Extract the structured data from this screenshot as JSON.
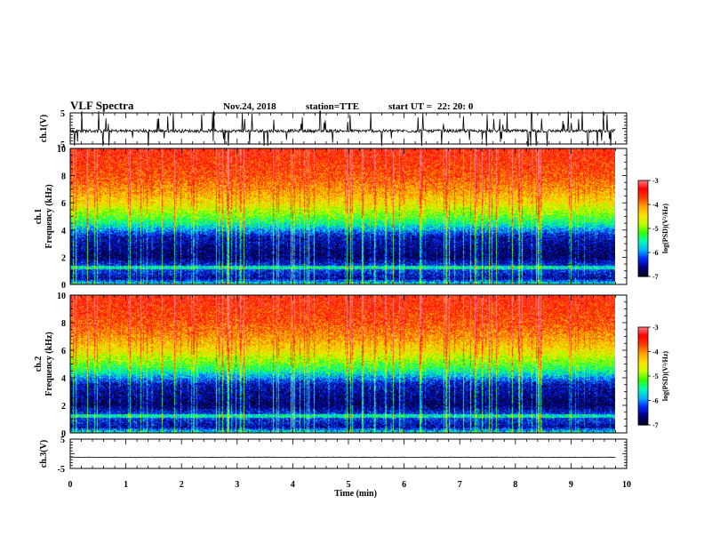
{
  "header": {
    "title": "VLF Spectra",
    "date": "Nov.24, 2018",
    "station": "station=TTE",
    "start_label": "start UT =",
    "start_time": "22: 20: 0"
  },
  "colors": {
    "frame": "#000000",
    "waveform": "#000000",
    "colormap": [
      "#000020",
      "#000080",
      "#0028ff",
      "#00b4ff",
      "#00ffb4",
      "#32ff00",
      "#c8ff00",
      "#ffe000",
      "#ffa000",
      "#ff3c00",
      "#ff0000",
      "#ff8080"
    ]
  },
  "chart_data": [
    {
      "type": "line",
      "ylabel": "ch.1(V)",
      "ylim": [
        -5,
        5
      ],
      "ytick_labels": [
        "-5",
        "5"
      ],
      "xlim": [
        0,
        10
      ],
      "x_coverage_min": 9.8,
      "baseline_v": -0.8,
      "noise_amplitude_v": 0.5,
      "impulsive_spikes": true
    },
    {
      "type": "heatmap",
      "ylabel": "ch.1\nFrequency (kHz)",
      "ylim_khz": [
        0,
        10
      ],
      "ytick_labels": [
        "0",
        "2",
        "4",
        "6",
        "8",
        "10"
      ],
      "xlim_min": [
        0,
        10
      ],
      "x_coverage_min": 9.8,
      "colorbar_label": "log(PSD)(V²/Hz)",
      "colorbar_range": [
        -7,
        -3
      ],
      "colorbar_tick_labels": [
        "-7",
        "-6",
        "-5",
        "-4",
        "-3"
      ],
      "band_profile_khz": [
        0,
        0.4,
        1.2,
        2.0,
        3.5,
        4.5,
        5.2,
        6.0,
        7.0,
        8.0,
        10.0
      ],
      "band_profile_logpsd": [
        -5.6,
        -6.6,
        -6.2,
        -6.8,
        -6.5,
        -5.5,
        -5.0,
        -4.5,
        -4.1,
        -3.8,
        -3.5
      ],
      "interference_line_khz": 1.2
    },
    {
      "type": "heatmap",
      "ylabel": "ch.2\nFrequency (kHz)",
      "ylim_khz": [
        0,
        10
      ],
      "ytick_labels": [
        "0",
        "2",
        "4",
        "6",
        "8",
        "10"
      ],
      "xlim_min": [
        0,
        10
      ],
      "x_coverage_min": 9.8,
      "colorbar_label": "log(PSD)(V²/Hz)",
      "colorbar_range": [
        -7,
        -3
      ],
      "colorbar_tick_labels": [
        "-7",
        "-6",
        "-5",
        "-4",
        "-3"
      ],
      "band_profile_khz": [
        0,
        0.4,
        1.2,
        2.0,
        3.5,
        4.5,
        5.2,
        6.0,
        7.0,
        8.0,
        10.0
      ],
      "band_profile_logpsd": [
        -5.6,
        -6.6,
        -6.2,
        -6.8,
        -6.5,
        -5.5,
        -5.0,
        -4.5,
        -4.1,
        -3.8,
        -3.5
      ],
      "interference_line_khz": 1.2
    },
    {
      "type": "line",
      "ylabel": "ch.3(V)",
      "ylim": [
        -5,
        5
      ],
      "ytick_labels": [
        "-5",
        "5"
      ],
      "xlim": [
        0,
        10
      ],
      "x_coverage_min": 9.8,
      "baseline_v": -1.2,
      "noise_amplitude_v": 0.1
    }
  ],
  "xaxis": {
    "label": "Time (min)",
    "tick_labels": [
      "0",
      "1",
      "2",
      "3",
      "4",
      "5",
      "6",
      "7",
      "8",
      "9",
      "10"
    ]
  }
}
